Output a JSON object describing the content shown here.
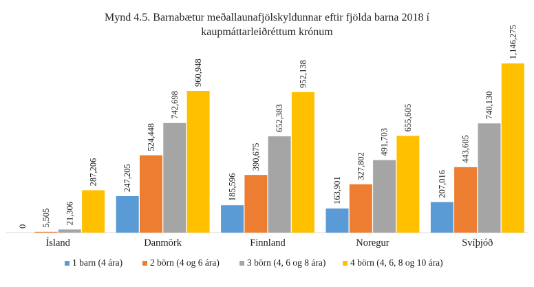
{
  "chart_data": {
    "type": "bar",
    "title_lines": [
      "Mynd 4.5. Barnabætur meðallaunafjölskyldunnar eftir fjölda barna 2018 í",
      "kaupmáttarleiðréttum krónum"
    ],
    "categories": [
      "Ísland",
      "Danmörk",
      "Finnland",
      "Noregur",
      "Svíþjóð"
    ],
    "series": [
      {
        "name": "1 barn (4 ára)",
        "color": "#5B9BD5",
        "values": [
          0,
          247205,
          185596,
          163901,
          207016
        ],
        "labels": [
          "0",
          "247,205",
          "185,596",
          "163,901",
          "207,016"
        ]
      },
      {
        "name": "2 börn (4 og 6 ára)",
        "color": "#ED7D31",
        "values": [
          5505,
          524448,
          390675,
          327802,
          443605
        ],
        "labels": [
          "5,505",
          "524,448",
          "390,675",
          "327,802",
          "443,605"
        ]
      },
      {
        "name": "3 börn (4, 6 og 8 ára)",
        "color": "#A5A5A5",
        "values": [
          21306,
          742698,
          652383,
          491703,
          740130
        ],
        "labels": [
          "21,306",
          "742,698",
          "652,383",
          "491,703",
          "740,130"
        ]
      },
      {
        "name": "4 börn (4, 6, 8 og 10 ára)",
        "color": "#FFC000",
        "values": [
          287206,
          960948,
          952138,
          655605,
          1146275
        ],
        "labels": [
          "287,206",
          "960,948",
          "952,138",
          "655,605",
          "1,146,275"
        ]
      }
    ],
    "ylim": [
      0,
      1250000
    ],
    "grid": false,
    "legend": "bottom"
  }
}
